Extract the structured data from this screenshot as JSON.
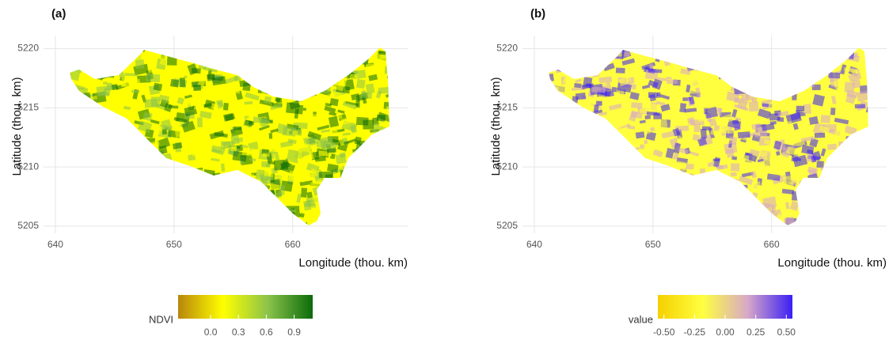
{
  "panels": [
    {
      "label": "(a)",
      "x_label": "Longitude (thou. km)",
      "y_label": "Latitude (thou. km)",
      "xlim": [
        639,
        669.7
      ],
      "ylim": [
        5204.4,
        5221.1
      ],
      "xticks": [
        640,
        650,
        660
      ],
      "yticks": [
        5205,
        5210,
        5215,
        5220
      ],
      "legend": {
        "title": "NDVI",
        "colors": [
          "#b8860b",
          "#ffff00",
          "#8bc34a",
          "#0b6b0b"
        ],
        "lim": [
          -0.35,
          1.1
        ],
        "ticks": [
          {
            "value": 0,
            "label": "0.0"
          },
          0.3,
          0.6,
          0.9
        ]
      }
    },
    {
      "label": "(b)",
      "x_label": "Longitude (thou. km)",
      "y_label": "Latitude (thou. km)",
      "xlim": [
        639,
        669.7
      ],
      "ylim": [
        5204.4,
        5221.1
      ],
      "xticks": [
        640,
        650,
        660
      ],
      "yticks": [
        5205,
        5210,
        5215,
        5220
      ],
      "legend": {
        "title": "value",
        "colors": [
          "#f5d000",
          "#ffff40",
          "#d8a8c8",
          "#3a1ff5"
        ],
        "lim": [
          -0.55,
          0.55
        ],
        "ticks": [
          {
            "value": -0.5,
            "label": "-0.50"
          },
          {
            "value": -0.25,
            "label": "-0.25"
          },
          {
            "value": 0,
            "label": "0.00"
          },
          0.25,
          {
            "value": 0.5,
            "label": "0.50"
          }
        ]
      }
    }
  ]
}
